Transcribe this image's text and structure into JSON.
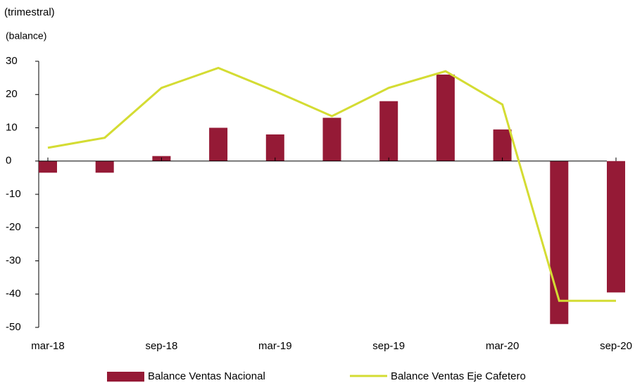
{
  "chart_data": {
    "type": "bar_line",
    "subtitle": "(trimestral)",
    "y_label": "(balance)",
    "categories": [
      "mar-18",
      null,
      "sep-18",
      null,
      "mar-19",
      null,
      "sep-19",
      null,
      "mar-20",
      null,
      "sep-20"
    ],
    "series": [
      {
        "name": "Balance Ventas Nacional",
        "type": "bar",
        "color": "#951a36",
        "values": [
          -3.5,
          -3.5,
          1.5,
          10,
          8,
          13,
          18,
          26,
          9.5,
          -49,
          -39.5
        ]
      },
      {
        "name": "Balance Ventas Eje Cafetero",
        "type": "line",
        "color": "#d4dc33",
        "values": [
          4,
          7,
          22,
          28,
          21,
          13.5,
          22,
          27,
          17,
          -42,
          -42
        ]
      }
    ],
    "ylim": [
      -50,
      30
    ],
    "yticks": [
      -50,
      -40,
      -30,
      -20,
      -10,
      0,
      10,
      20,
      30
    ]
  }
}
